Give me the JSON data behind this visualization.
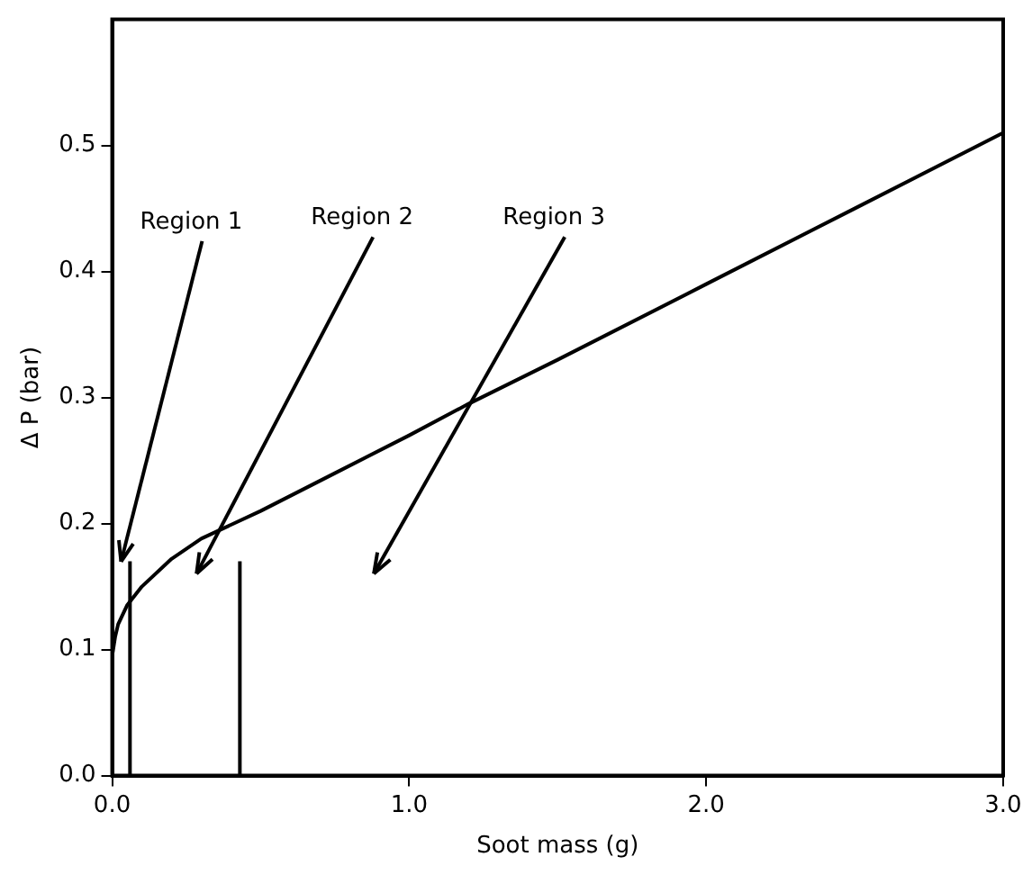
{
  "chart_data": {
    "type": "line",
    "xlabel": "Soot mass (g)",
    "ylabel": "Δ P (bar)",
    "xlim": [
      0,
      3
    ],
    "ylim": [
      0,
      0.6
    ],
    "xticks": [
      {
        "value": 0,
        "label": "0.0"
      },
      {
        "value": 1,
        "label": "1.0"
      },
      {
        "value": 2,
        "label": "2.0"
      },
      {
        "value": 3,
        "label": "3.0"
      }
    ],
    "yticks": [
      {
        "value": 0,
        "label": "0.0"
      },
      0.1,
      0.2,
      0.3,
      0.4,
      0.5
    ],
    "series": [
      {
        "color": "#000000",
        "x": [
          0,
          0.01,
          0.02,
          0.05,
          0.1,
          0.2,
          0.3,
          0.5,
          0.75,
          1.0,
          1.2,
          1.5,
          2.0,
          2.5,
          3.0
        ],
        "values": [
          0.095,
          0.11,
          0.12,
          0.135,
          0.15,
          0.172,
          0.188,
          0.21,
          0.24,
          0.27,
          0.295,
          0.33,
          0.39,
          0.45,
          0.51
        ]
      },
      {
        "color": "#000000",
        "x": [
          0.06,
          0.06
        ],
        "values": [
          0,
          0.17
        ]
      },
      {
        "color": "#000000",
        "x": [
          0.43,
          0.43
        ],
        "values": [
          0,
          0.17
        ]
      }
    ],
    "annotations": [
      "Region 1",
      "Region 2",
      "Region 3"
    ],
    "grid": false,
    "legend": false,
    "marker": "none",
    "line_style": "solid"
  }
}
